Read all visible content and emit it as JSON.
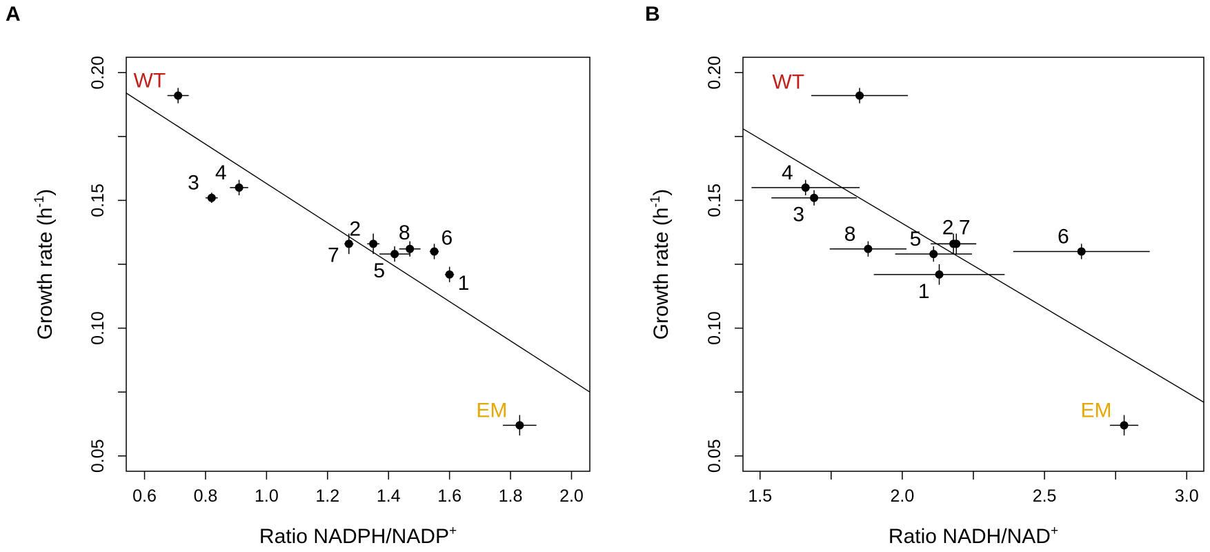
{
  "figure": {
    "panels": [
      "A",
      "B"
    ]
  },
  "chart_data": [
    {
      "panel_label": "A",
      "type": "scatter",
      "xlabel": "Ratio NADPH/NADP",
      "xlabel_sup": "+",
      "ylabel": "Growth rate (h",
      "ylabel_sup": "-1",
      "ylabel_end": ")",
      "xlim": [
        0.54,
        2.06
      ],
      "ylim": [
        0.044,
        0.206
      ],
      "x_ticks": [
        0.6,
        0.8,
        1.0,
        1.2,
        1.4,
        1.6,
        1.8,
        2.0
      ],
      "x_tick_labels": [
        "0.6",
        "0.8",
        "1.0",
        "1.2",
        "1.4",
        "1.6",
        "1.8",
        "2.0"
      ],
      "x_minor_ticks": [],
      "y_ticks": [
        0.05,
        0.1,
        0.15,
        0.2
      ],
      "y_tick_labels": [
        "0.05",
        "0.10",
        "0.15",
        "0.20"
      ],
      "y_minor_ticks": [
        0.075,
        0.125,
        0.175
      ],
      "fit_line": {
        "x1": 0.54,
        "y1": 0.192,
        "x2": 2.06,
        "y2": 0.075
      },
      "points": [
        {
          "label": "WT",
          "x": 0.71,
          "y": 0.191,
          "xerr": 0.035,
          "yerr": 0.003,
          "color": "#c0201a",
          "label_pos": "left-up"
        },
        {
          "label": "EM",
          "x": 1.83,
          "y": 0.062,
          "xerr": 0.055,
          "yerr": 0.004,
          "color": "#e6a800",
          "label_pos": "left-up"
        },
        {
          "label": "1",
          "x": 1.6,
          "y": 0.121,
          "xerr": 0.015,
          "yerr": 0.003,
          "color": "#000000",
          "label_pos": "right-down"
        },
        {
          "label": "2",
          "x": 1.35,
          "y": 0.133,
          "xerr": 0.02,
          "yerr": 0.004,
          "color": "#000000",
          "label_pos": "left-up"
        },
        {
          "label": "3",
          "x": 0.82,
          "y": 0.151,
          "xerr": 0.02,
          "yerr": 0.002,
          "color": "#000000",
          "label_pos": "left-up"
        },
        {
          "label": "4",
          "x": 0.91,
          "y": 0.155,
          "xerr": 0.03,
          "yerr": 0.003,
          "color": "#000000",
          "label_pos": "left-up"
        },
        {
          "label": "5",
          "x": 1.42,
          "y": 0.129,
          "xerr": 0.05,
          "yerr": 0.003,
          "color": "#000000",
          "label_pos": "below-left"
        },
        {
          "label": "6",
          "x": 1.55,
          "y": 0.13,
          "xerr": 0.015,
          "yerr": 0.003,
          "color": "#000000",
          "label_pos": "right-up"
        },
        {
          "label": "7",
          "x": 1.27,
          "y": 0.133,
          "xerr": 0.015,
          "yerr": 0.004,
          "color": "#000000",
          "label_pos": "left-down"
        },
        {
          "label": "8",
          "x": 1.47,
          "y": 0.131,
          "xerr": 0.035,
          "yerr": 0.003,
          "color": "#000000",
          "label_pos": "up-left"
        }
      ]
    },
    {
      "panel_label": "B",
      "type": "scatter",
      "xlabel": "Ratio NADH/NAD",
      "xlabel_sup": "+",
      "ylabel": "Growth rate (h",
      "ylabel_sup": "-1",
      "ylabel_end": ")",
      "xlim": [
        1.44,
        3.06
      ],
      "ylim": [
        0.044,
        0.206
      ],
      "x_ticks": [
        1.5,
        2.0,
        2.5,
        3.0
      ],
      "x_tick_labels": [
        "1.5",
        "2.0",
        "2.5",
        "3.0"
      ],
      "x_minor_ticks": [
        1.75,
        2.25,
        2.75
      ],
      "y_ticks": [
        0.05,
        0.1,
        0.15,
        0.2
      ],
      "y_tick_labels": [
        "0.05",
        "0.10",
        "0.15",
        "0.20"
      ],
      "y_minor_ticks": [
        0.075,
        0.125,
        0.175
      ],
      "fit_line": {
        "x1": 1.44,
        "y1": 0.178,
        "x2": 3.06,
        "y2": 0.071
      },
      "points": [
        {
          "label": "WT",
          "x": 1.85,
          "y": 0.191,
          "xerr": 0.17,
          "yerr": 0.003,
          "color": "#c0201a",
          "label_pos": "left-up-far"
        },
        {
          "label": "EM",
          "x": 2.78,
          "y": 0.062,
          "xerr": 0.05,
          "yerr": 0.004,
          "color": "#e6a800",
          "label_pos": "left-up"
        },
        {
          "label": "1",
          "x": 2.13,
          "y": 0.121,
          "xerr": 0.23,
          "yerr": 0.004,
          "color": "#000000",
          "label_pos": "below-left"
        },
        {
          "label": "2",
          "x": 2.18,
          "y": 0.133,
          "xerr": 0.08,
          "yerr": 0.004,
          "color": "#000000",
          "label_pos": "up-left"
        },
        {
          "label": "3",
          "x": 1.69,
          "y": 0.151,
          "xerr": 0.15,
          "yerr": 0.003,
          "color": "#000000",
          "label_pos": "below-left"
        },
        {
          "label": "4",
          "x": 1.66,
          "y": 0.155,
          "xerr": 0.19,
          "yerr": 0.003,
          "color": "#000000",
          "label_pos": "left-up"
        },
        {
          "label": "5",
          "x": 2.11,
          "y": 0.129,
          "xerr": 0.135,
          "yerr": 0.003,
          "color": "#000000",
          "label_pos": "left-up"
        },
        {
          "label": "6",
          "x": 2.63,
          "y": 0.13,
          "xerr": 0.24,
          "yerr": 0.003,
          "color": "#000000",
          "label_pos": "left-up"
        },
        {
          "label": "7",
          "x": 2.19,
          "y": 0.133,
          "xerr": 0.07,
          "yerr": 0.004,
          "color": "#000000",
          "label_pos": "up-right"
        },
        {
          "label": "8",
          "x": 1.88,
          "y": 0.131,
          "xerr": 0.135,
          "yerr": 0.003,
          "color": "#000000",
          "label_pos": "left-up"
        }
      ]
    }
  ]
}
